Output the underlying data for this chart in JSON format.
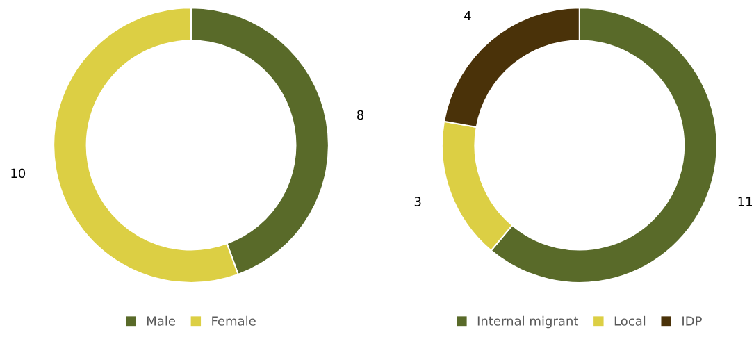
{
  "chart_data": [
    {
      "type": "donut",
      "categories": [
        "Male",
        "Female"
      ],
      "values": [
        8,
        10
      ],
      "colors": [
        "#596a29",
        "#dccf44"
      ],
      "data_labels": true,
      "legend": "bottom"
    },
    {
      "type": "donut",
      "categories": [
        "Internal migrant",
        "Local",
        "IDP"
      ],
      "values": [
        11,
        3,
        4
      ],
      "colors": [
        "#596a29",
        "#dccf44",
        "#4a3209"
      ],
      "data_labels": true,
      "legend": "bottom"
    }
  ]
}
